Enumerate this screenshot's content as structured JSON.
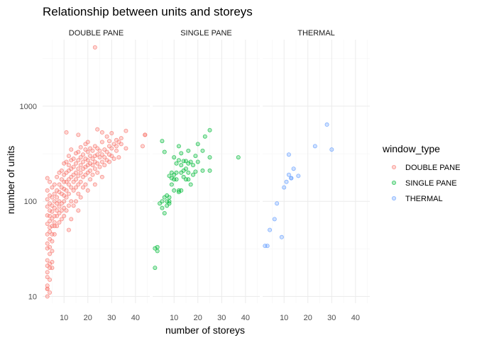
{
  "chart_data": {
    "type": "scatter",
    "title": "Relationship between units and storeys",
    "xlabel": "number of storeys",
    "ylabel": "number of units",
    "x_scale": "linear",
    "y_scale": "log10",
    "xlim": [
      1,
      46
    ],
    "ylim": [
      8.5,
      5000
    ],
    "x_ticks": [
      10,
      20,
      30,
      40
    ],
    "x_tick_labels": [
      "10",
      "20",
      "30",
      "40"
    ],
    "y_ticks": [
      10,
      100,
      1000
    ],
    "y_tick_labels": [
      "10",
      "100",
      "1000"
    ],
    "grid": true,
    "legend_title": "window_type",
    "legend_position": "right",
    "facets": [
      "DOUBLE PANE",
      "SINGLE PANE",
      "THERMAL"
    ],
    "series": [
      {
        "name": "DOUBLE PANE",
        "color": "#F8766D",
        "points": [
          [
            23,
            4150
          ],
          [
            3,
            10
          ],
          [
            3,
            12
          ],
          [
            3,
            12
          ],
          [
            3,
            13
          ],
          [
            3,
            16
          ],
          [
            3,
            18
          ],
          [
            3,
            21
          ],
          [
            3,
            24
          ],
          [
            3,
            32
          ],
          [
            3,
            36
          ],
          [
            3,
            45
          ],
          [
            3,
            58
          ],
          [
            3,
            71
          ],
          [
            3,
            88
          ],
          [
            3,
            105
          ],
          [
            3,
            130
          ],
          [
            3,
            175
          ],
          [
            4,
            11
          ],
          [
            4,
            15
          ],
          [
            4,
            20
          ],
          [
            4,
            22
          ],
          [
            4,
            28
          ],
          [
            4,
            33
          ],
          [
            4,
            40
          ],
          [
            4,
            48
          ],
          [
            4,
            53
          ],
          [
            4,
            62
          ],
          [
            4,
            70
          ],
          [
            4,
            80
          ],
          [
            4,
            95
          ],
          [
            4,
            115
          ],
          [
            4,
            160
          ],
          [
            5,
            20
          ],
          [
            5,
            23
          ],
          [
            5,
            30
          ],
          [
            5,
            38
          ],
          [
            5,
            45
          ],
          [
            5,
            55
          ],
          [
            5,
            66
          ],
          [
            5,
            78
          ],
          [
            5,
            90
          ],
          [
            5,
            110
          ],
          [
            5,
            140
          ],
          [
            6,
            45
          ],
          [
            6,
            55
          ],
          [
            6,
            60
          ],
          [
            6,
            70
          ],
          [
            6,
            85
          ],
          [
            6,
            100
          ],
          [
            6,
            120
          ],
          [
            6,
            150
          ],
          [
            7,
            55
          ],
          [
            7,
            70
          ],
          [
            7,
            80
          ],
          [
            7,
            95
          ],
          [
            7,
            110
          ],
          [
            7,
            130
          ],
          [
            7,
            180
          ],
          [
            8,
            60
          ],
          [
            8,
            75
          ],
          [
            8,
            88
          ],
          [
            8,
            100
          ],
          [
            8,
            125
          ],
          [
            8,
            150
          ],
          [
            8,
            200
          ],
          [
            9,
            65
          ],
          [
            9,
            80
          ],
          [
            9,
            95
          ],
          [
            9,
            120
          ],
          [
            9,
            140
          ],
          [
            9,
            170
          ],
          [
            9,
            210
          ],
          [
            10,
            70
          ],
          [
            10,
            85
          ],
          [
            10,
            100
          ],
          [
            10,
            115
          ],
          [
            10,
            135
          ],
          [
            10,
            160
          ],
          [
            10,
            190
          ],
          [
            10,
            250
          ],
          [
            11,
            80
          ],
          [
            11,
            110
          ],
          [
            11,
            130
          ],
          [
            11,
            160
          ],
          [
            11,
            200
          ],
          [
            11,
            260
          ],
          [
            12,
            50
          ],
          [
            12,
            90
          ],
          [
            12,
            120
          ],
          [
            12,
            150
          ],
          [
            12,
            170
          ],
          [
            12,
            210
          ],
          [
            12,
            240
          ],
          [
            12,
            300
          ],
          [
            13,
            65
          ],
          [
            13,
            100
          ],
          [
            13,
            140
          ],
          [
            13,
            180
          ],
          [
            13,
            220
          ],
          [
            13,
            270
          ],
          [
            13,
            350
          ],
          [
            14,
            90
          ],
          [
            14,
            130
          ],
          [
            14,
            160
          ],
          [
            14,
            190
          ],
          [
            14,
            230
          ],
          [
            14,
            280
          ],
          [
            15,
            100
          ],
          [
            15,
            140
          ],
          [
            15,
            170
          ],
          [
            15,
            200
          ],
          [
            15,
            250
          ],
          [
            15,
            320
          ],
          [
            16,
            80
          ],
          [
            16,
            120
          ],
          [
            16,
            150
          ],
          [
            16,
            185
          ],
          [
            16,
            220
          ],
          [
            16,
            270
          ],
          [
            16,
            330
          ],
          [
            17,
            110
          ],
          [
            17,
            160
          ],
          [
            17,
            200
          ],
          [
            17,
            240
          ],
          [
            17,
            290
          ],
          [
            17,
            370
          ],
          [
            18,
            140
          ],
          [
            18,
            180
          ],
          [
            18,
            220
          ],
          [
            18,
            260
          ],
          [
            18,
            310
          ],
          [
            19,
            150
          ],
          [
            19,
            190
          ],
          [
            19,
            230
          ],
          [
            19,
            280
          ],
          [
            19,
            350
          ],
          [
            19,
            400
          ],
          [
            20,
            130
          ],
          [
            20,
            200
          ],
          [
            20,
            240
          ],
          [
            20,
            270
          ],
          [
            20,
            330
          ],
          [
            20,
            420
          ],
          [
            21,
            170
          ],
          [
            21,
            210
          ],
          [
            21,
            250
          ],
          [
            21,
            300
          ],
          [
            21,
            360
          ],
          [
            22,
            190
          ],
          [
            22,
            240
          ],
          [
            22,
            280
          ],
          [
            22,
            340
          ],
          [
            23,
            150
          ],
          [
            23,
            220
          ],
          [
            23,
            260
          ],
          [
            23,
            300
          ],
          [
            23,
            380
          ],
          [
            24,
            200
          ],
          [
            24,
            250
          ],
          [
            24,
            310
          ],
          [
            24,
            360
          ],
          [
            24,
            570
          ],
          [
            25,
            230
          ],
          [
            25,
            290
          ],
          [
            25,
            340
          ],
          [
            26,
            180
          ],
          [
            26,
            260
          ],
          [
            26,
            310
          ],
          [
            26,
            420
          ],
          [
            27,
            240
          ],
          [
            27,
            290
          ],
          [
            27,
            350
          ],
          [
            28,
            270
          ],
          [
            28,
            330
          ],
          [
            28,
            480
          ],
          [
            29,
            260
          ],
          [
            29,
            310
          ],
          [
            29,
            380
          ],
          [
            29,
            430
          ],
          [
            30,
            300
          ],
          [
            30,
            360
          ],
          [
            30,
            520
          ],
          [
            31,
            280
          ],
          [
            31,
            400
          ],
          [
            32,
            340
          ],
          [
            32,
            380
          ],
          [
            32,
            440
          ],
          [
            33,
            290
          ],
          [
            33,
            420
          ],
          [
            34,
            400
          ],
          [
            34,
            460
          ],
          [
            36,
            360
          ],
          [
            36,
            550
          ],
          [
            11,
            530
          ],
          [
            16,
            500
          ],
          [
            26,
            530
          ],
          [
            43,
            380
          ],
          [
            44,
            500
          ],
          [
            44,
            500
          ]
        ]
      },
      {
        "name": "SINGLE PANE",
        "color": "#00BA38",
        "points": [
          [
            2,
            20
          ],
          [
            2,
            32
          ],
          [
            3,
            33
          ],
          [
            3,
            30
          ],
          [
            4,
            95
          ],
          [
            5,
            85
          ],
          [
            5,
            100
          ],
          [
            5,
            430
          ],
          [
            6,
            110
          ],
          [
            6,
            75
          ],
          [
            6,
            330
          ],
          [
            7,
            100
          ],
          [
            7,
            115
          ],
          [
            7,
            90
          ],
          [
            8,
            95
          ],
          [
            8,
            110
          ],
          [
            8,
            185
          ],
          [
            8,
            100
          ],
          [
            9,
            150
          ],
          [
            9,
            200
          ],
          [
            9,
            175
          ],
          [
            10,
            130
          ],
          [
            10,
            190
          ],
          [
            10,
            290
          ],
          [
            10,
            170
          ],
          [
            11,
            170
          ],
          [
            11,
            200
          ],
          [
            11,
            250
          ],
          [
            12,
            125
          ],
          [
            12,
            130
          ],
          [
            12,
            270
          ],
          [
            12,
            380
          ],
          [
            13,
            130
          ],
          [
            13,
            200
          ],
          [
            13,
            240
          ],
          [
            13,
            320
          ],
          [
            14,
            180
          ],
          [
            14,
            210
          ],
          [
            14,
            265
          ],
          [
            15,
            170
          ],
          [
            15,
            220
          ],
          [
            15,
            265
          ],
          [
            16,
            200
          ],
          [
            16,
            250
          ],
          [
            16,
            340
          ],
          [
            16,
            170
          ],
          [
            17,
            150
          ],
          [
            17,
            260
          ],
          [
            18,
            190
          ],
          [
            18,
            240
          ],
          [
            19,
            205
          ],
          [
            19,
            300
          ],
          [
            20,
            260
          ],
          [
            20,
            400
          ],
          [
            22,
            210
          ],
          [
            22,
            340
          ],
          [
            23,
            480
          ],
          [
            25,
            210
          ],
          [
            25,
            290
          ],
          [
            25,
            560
          ],
          [
            37,
            290
          ]
        ]
      },
      {
        "name": "THERMAL",
        "color": "#619CFF",
        "points": [
          [
            2,
            34
          ],
          [
            3,
            34
          ],
          [
            4,
            50
          ],
          [
            6,
            65
          ],
          [
            7,
            95
          ],
          [
            9,
            42
          ],
          [
            10,
            140
          ],
          [
            11,
            160
          ],
          [
            12,
            310
          ],
          [
            12,
            190
          ],
          [
            13,
            175
          ],
          [
            13,
            175
          ],
          [
            14,
            220
          ],
          [
            16,
            185
          ],
          [
            23,
            380
          ],
          [
            28,
            640
          ],
          [
            30,
            350
          ]
        ]
      }
    ]
  }
}
